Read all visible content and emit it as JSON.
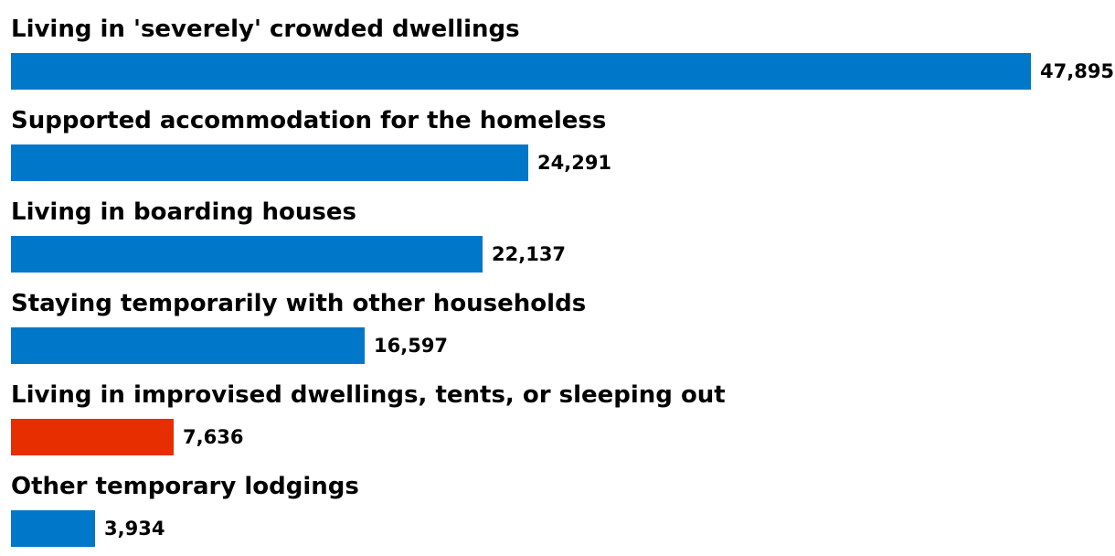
{
  "chart_data": {
    "type": "bar",
    "orientation": "horizontal",
    "categories": [
      "Living in 'severely' crowded dwellings",
      "Supported accommodation for the homeless",
      "Living in boarding houses",
      "Staying temporarily with other households",
      "Living in improvised dwellings, tents, or sleeping out",
      "Other temporary lodgings"
    ],
    "values": [
      47895,
      24291,
      22137,
      16597,
      7636,
      3934
    ],
    "value_labels": [
      "47,895",
      "24,291",
      "22,137",
      "16,597",
      "7,636",
      "3,934"
    ],
    "highlight_index": 4,
    "colors": {
      "default": "#0077c8",
      "highlight": "#e62e00"
    },
    "title": "",
    "xlabel": "",
    "ylabel": "",
    "xlim": [
      0,
      47895
    ],
    "grid": false,
    "legend": "none"
  }
}
